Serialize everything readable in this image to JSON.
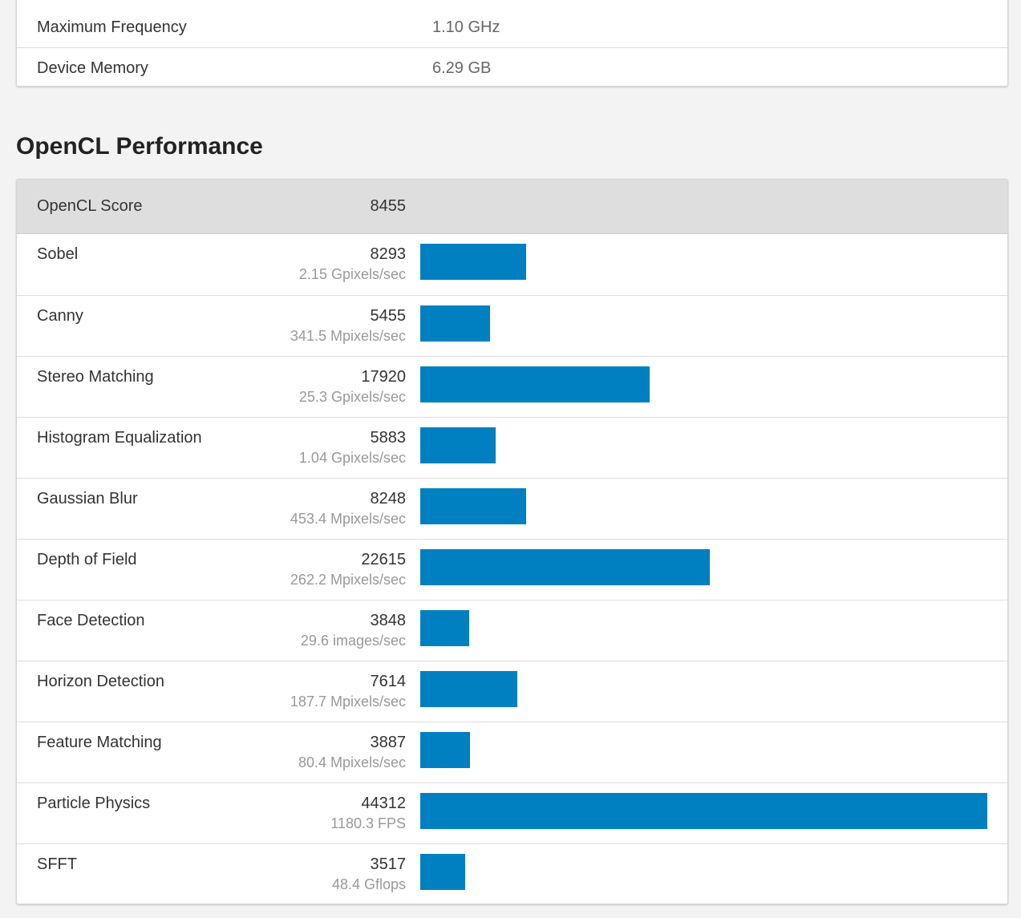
{
  "device_info": {
    "rows": [
      {
        "name": "Maximum Frequency",
        "value": "1.10 GHz"
      },
      {
        "name": "Device Memory",
        "value": "6.29 GB"
      }
    ]
  },
  "section": {
    "title": "OpenCL Performance"
  },
  "score": {
    "label": "OpenCL Score",
    "value": "8455"
  },
  "bar_color": "#0080c0",
  "max_score": 44312,
  "benchmarks": [
    {
      "name": "Sobel",
      "score": "8293",
      "unit": "2.15 Gpixels/sec",
      "value": 8293
    },
    {
      "name": "Canny",
      "score": "5455",
      "unit": "341.5 Mpixels/sec",
      "value": 5455
    },
    {
      "name": "Stereo Matching",
      "score": "17920",
      "unit": "25.3 Gpixels/sec",
      "value": 17920
    },
    {
      "name": "Histogram Equalization",
      "score": "5883",
      "unit": "1.04 Gpixels/sec",
      "value": 5883
    },
    {
      "name": "Gaussian Blur",
      "score": "8248",
      "unit": "453.4 Mpixels/sec",
      "value": 8248
    },
    {
      "name": "Depth of Field",
      "score": "22615",
      "unit": "262.2 Mpixels/sec",
      "value": 22615
    },
    {
      "name": "Face Detection",
      "score": "3848",
      "unit": "29.6 images/sec",
      "value": 3848
    },
    {
      "name": "Horizon Detection",
      "score": "7614",
      "unit": "187.7 Mpixels/sec",
      "value": 7614
    },
    {
      "name": "Feature Matching",
      "score": "3887",
      "unit": "80.4 Mpixels/sec",
      "value": 3887
    },
    {
      "name": "Particle Physics",
      "score": "44312",
      "unit": "1180.3 FPS",
      "value": 44312
    },
    {
      "name": "SFFT",
      "score": "3517",
      "unit": "48.4 Gflops",
      "value": 3517
    }
  ]
}
